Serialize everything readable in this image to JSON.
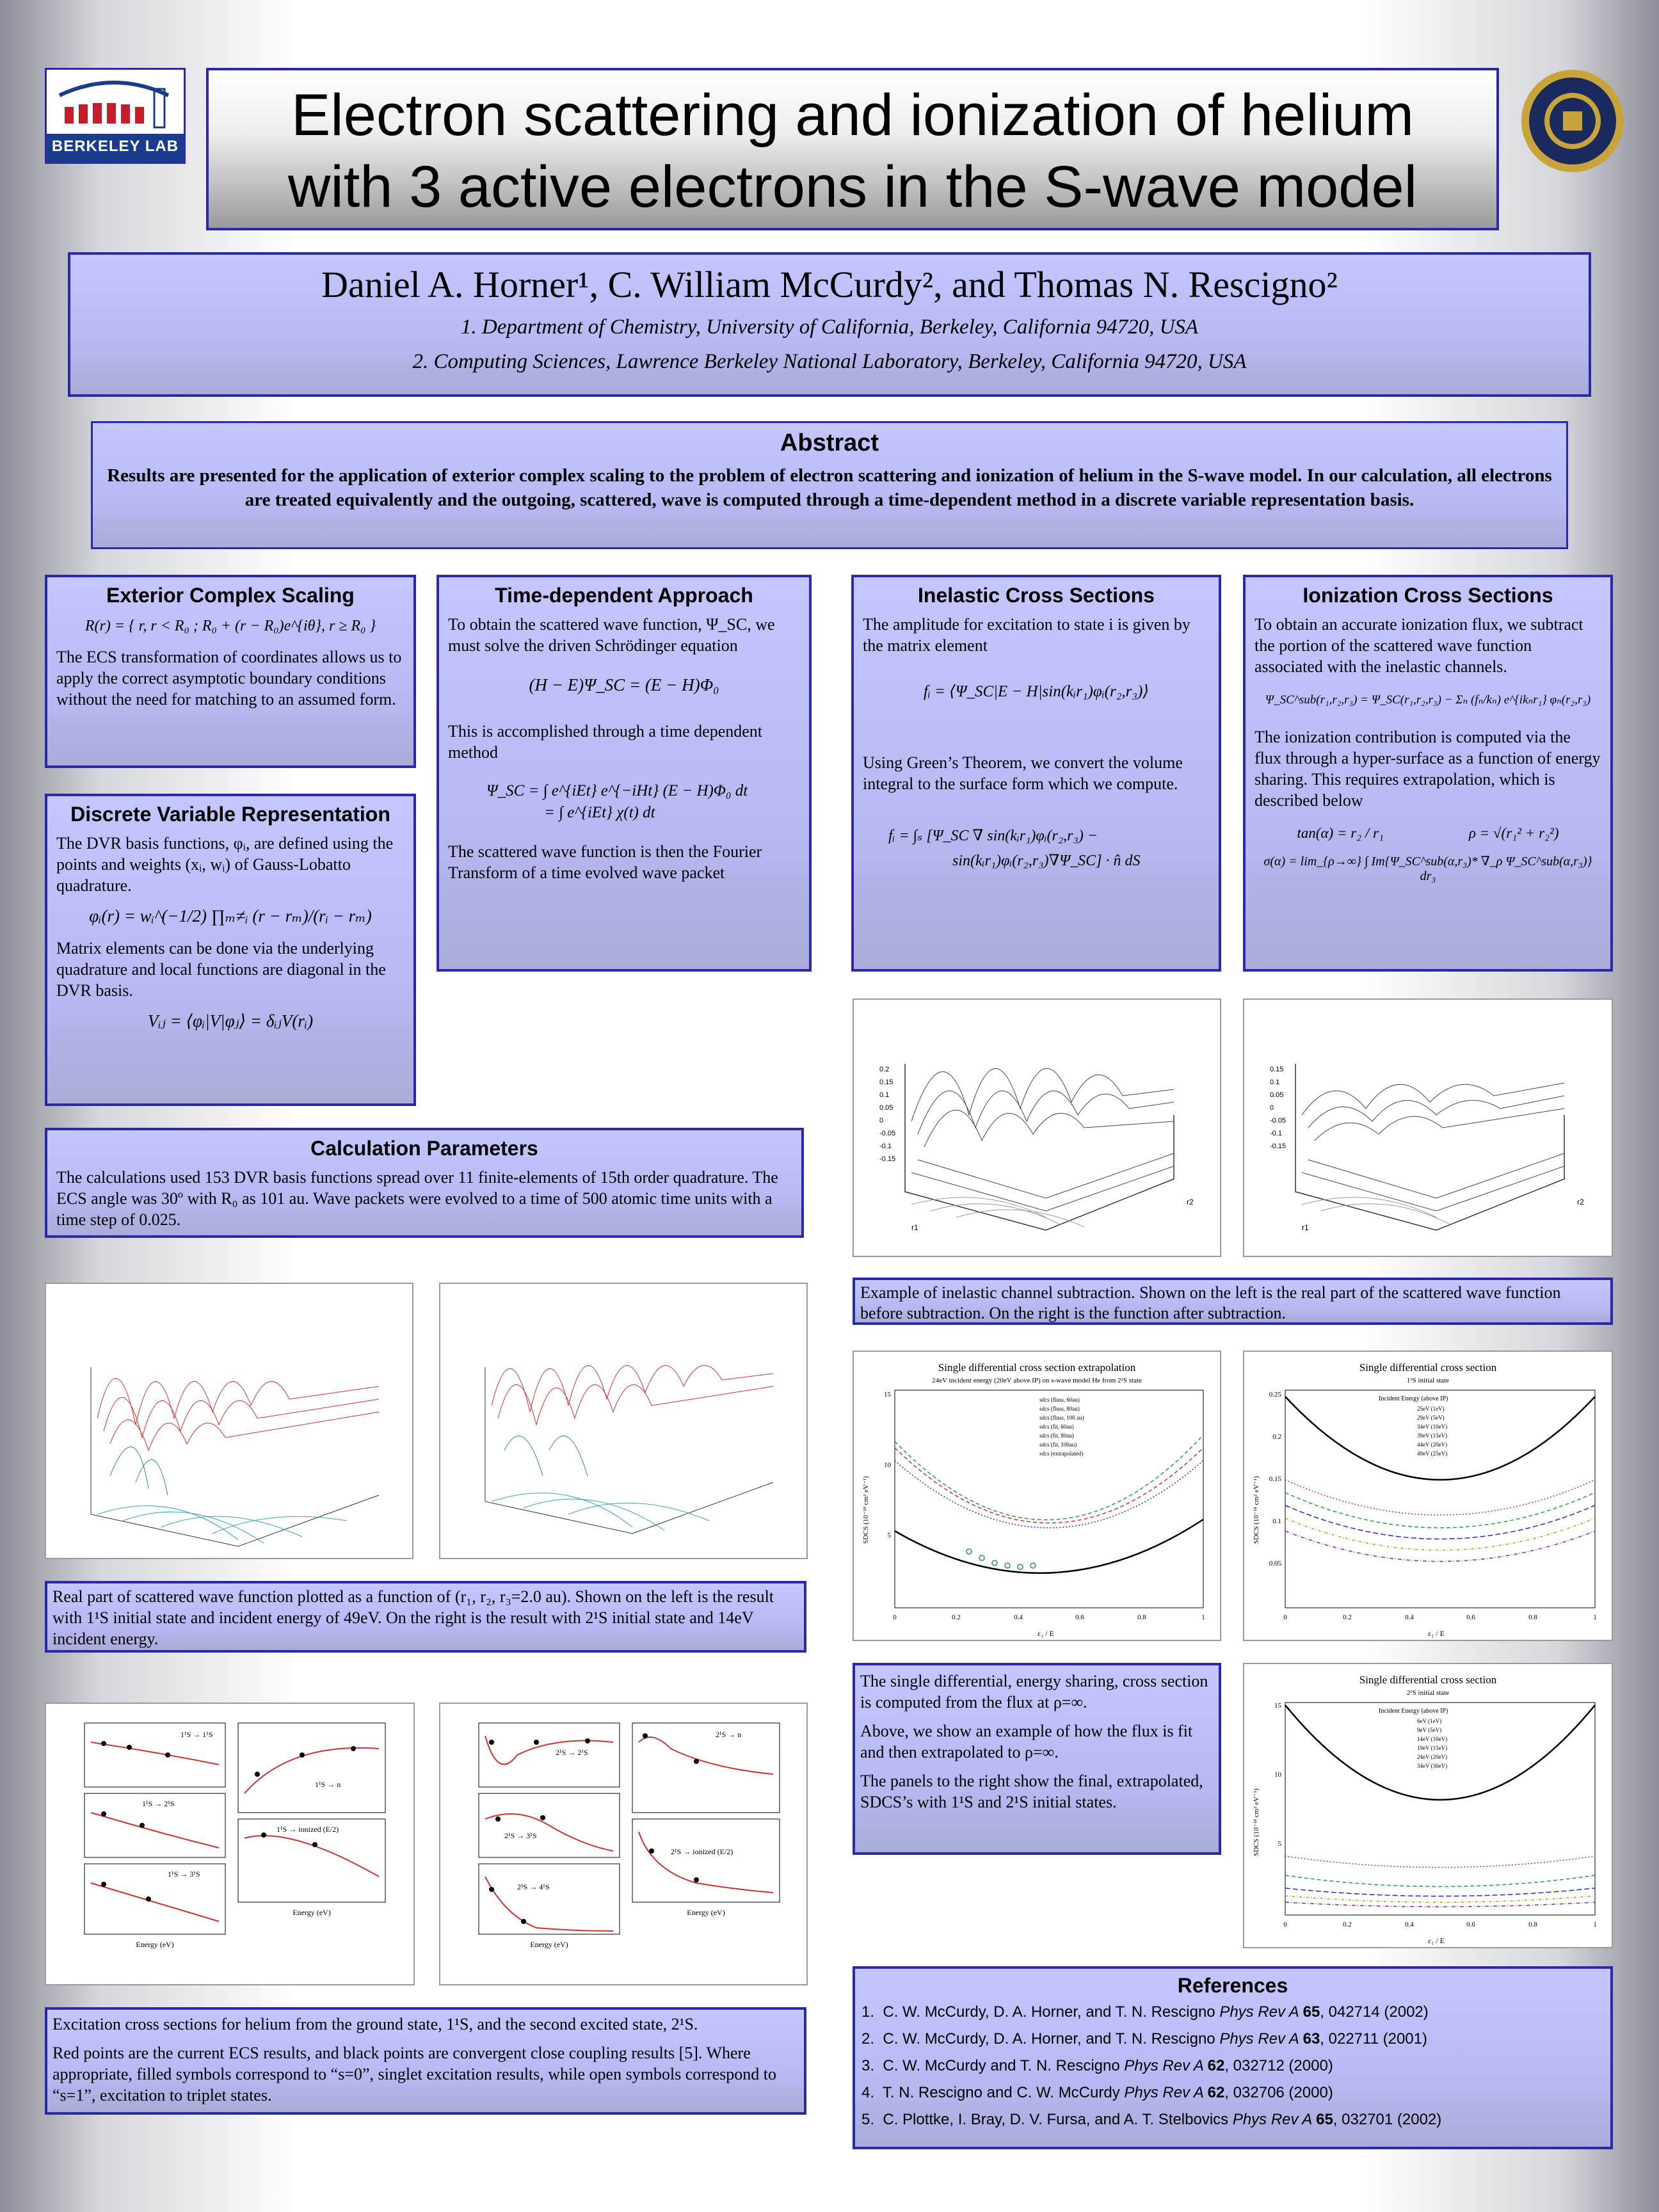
{
  "header": {
    "logo_left": "BERKELEY LAB",
    "title_line1": "Electron scattering and ionization of helium",
    "title_line2": "with 3 active electrons in the S-wave model",
    "seal_right": "UNIVERSITY OF CALIFORNIA 1868"
  },
  "authors": {
    "names": "Daniel A. Horner¹, C. William McCurdy², and Thomas N. Rescigno²",
    "affil1": "1. Department of Chemistry, University of California, Berkeley, California 94720, USA",
    "affil2": "2. Computing Sciences, Lawrence Berkeley National Laboratory, Berkeley, California 94720, USA"
  },
  "abstract": {
    "title": "Abstract",
    "text": "Results are presented for the application of exterior complex scaling to the problem of electron scattering and ionization of helium in the S-wave model. In our calculation, all electrons are treated equivalently and the outgoing, scattered, wave is computed through a time-dependent method in a discrete variable representation basis."
  },
  "ecs": {
    "title": "Exterior Complex Scaling",
    "eq": "R(r) = { r, r < R₀ ; R₀ + (r − R₀)e^{iθ}, r ≥ R₀ }",
    "text": "The ECS transformation of coordinates allows us to apply the correct asymptotic boundary conditions without the need for matching to an assumed form."
  },
  "dvr": {
    "title": "Discrete Variable Representation",
    "text1": "The DVR basis functions, φᵢ, are defined using the points and weights (xᵢ, wᵢ) of Gauss-Lobatto quadrature.",
    "eq1": "φᵢ(r) = wᵢ^(−1/2) ∏ₘ≠ᵢ (r − rₘ)/(rᵢ − rₘ)",
    "text2": "Matrix elements can be done via the underlying quadrature and local functions are diagonal in the DVR basis.",
    "eq2": "Vᵢⱼ = ⟨φᵢ|V|φⱼ⟩ = δᵢⱼV(rᵢ)"
  },
  "td": {
    "title": "Time-dependent Approach",
    "text1": "To obtain the scattered wave function, Ψ_SC, we must solve the driven Schrödinger equation",
    "eq1": "(H − E)Ψ_SC = (E − H)Φ₀",
    "text2": "This is accomplished through a time dependent method",
    "eq2a": "Ψ_SC  =  ∫ e^{iEt} e^{−iHt} (E − H)Φ₀ dt",
    "eq2b": "=  ∫ e^{iEt} χ(t) dt",
    "text3": "The scattered wave function is then the Fourier Transform of a time evolved wave packet"
  },
  "inelastic": {
    "title": "Inelastic Cross Sections",
    "text1": "The amplitude for excitation to state i is given by the matrix element",
    "eq1": "fᵢ = ⟨Ψ_SC|E − H|sin(kᵢr₁)φᵢ(r₂,r₃)⟩",
    "text2": "Using Green’s Theorem, we convert the volume integral to the surface form which we compute.",
    "eq2a": "fᵢ  =  ∫ₛ [Ψ_SC ∇ sin(kᵢr₁)φᵢ(r₂,r₃) −",
    "eq2b": "sin(kᵢr₁)φᵢ(r₂,r₃)∇Ψ_SC] · n̂ dS"
  },
  "ionization": {
    "title": "Ionization Cross Sections",
    "text1": "To obtain an accurate ionization flux, we subtract the portion of the scattered wave function associated with the inelastic channels.",
    "eq1": "Ψ_SC^sub(r₁,r₂,r₃) = Ψ_SC(r₁,r₂,r₃) − Σₙ (fₙ/kₙ) e^{ikₙr₁} φₙ(r₂,r₃)",
    "text2": "The ionization contribution is computed via the flux through a hyper-surface as a function of energy sharing. This requires extrapolation, which is described below",
    "eq2a": "tan(α) = r₂ / r₁",
    "eq2b": "ρ = √(r₁² + r₂²)",
    "eq3": "σ(α) = lim_{ρ→∞} ∫ Im{Ψ_SC^sub(α,r₃)* ∇_ρ Ψ_SC^sub(α,r₃)} dr₃"
  },
  "params": {
    "title": "Calculation Parameters",
    "text": "The calculations used 153 DVR basis functions spread over 11 finite-elements of 15th order quadrature. The ECS angle was 30º with R₀ as 101 au. Wave packets were evolved to a time of 500 atomic time units with a time step of 0.025."
  },
  "captions": {
    "subtraction": "Example of inelastic channel subtraction. Shown on the left is the real part of the scattered wave function before subtraction. On the right is the function after subtraction.",
    "realpart": "Real part of scattered wave function plotted as a function of (r₁, r₂, r₃=2.0 au). Shown on the left is the result with 1¹S initial state and incident energy of 49eV. On the right is the result with 2¹S initial state and 14eV incident energy.",
    "excitation1": "Excitation cross sections for helium from the ground state, 1¹S, and the second excited state, 2¹S.",
    "excitation2": "Red points are the current ECS results, and black points are convergent close coupling results [5]. Where appropriate, filled symbols correspond to “s=0”, singlet excitation results, while open symbols correspond to “s=1”, excitation to triplet states.",
    "sdcs1": "The single differential, energy sharing, cross section is computed from the flux at ρ=∞.",
    "sdcs2": "Above, we show an example of how the flux is fit and then extrapolated to ρ=∞.",
    "sdcs3": "The panels to the right show the final, extrapolated, SDCS’s with 1¹S and 2¹S initial states."
  },
  "plots": {
    "surface_left": {
      "zticks": [
        "0.2",
        "0.15",
        "0.1",
        "0.05",
        "0",
        "-0.05",
        "-0.1",
        "-0.15"
      ],
      "xlabel": "r1",
      "ylabel": "r2"
    },
    "surface_right": {
      "zticks": [
        "0.15",
        "0.1",
        "0.05",
        "0",
        "-0.05",
        "-0.1",
        "-0.15"
      ],
      "xlabel": "r1",
      "ylabel": "r2"
    },
    "sdcs_extrap": {
      "title": "Single differential cross section extrapolation",
      "subtitle": "24eV incident energy (20eV above IP) on s-wave model He from 2¹S state",
      "ylabel": "SDCS (10⁻¹⁸ cm² eV⁻¹)",
      "xlabel": "ε₁ / E",
      "legend": [
        "sdcs (fluss, 60au)",
        "sdcs (fluss, 80au)",
        "sdcs (fluss, 100 au)",
        "sdcs (fit, 60au)",
        "sdcs (fit, 80au)",
        "sdcs (fit, 100au)",
        "sdcs (extrapolated)"
      ],
      "xticks": [
        "0",
        "0.2",
        "0.4",
        "0.6",
        "0.8",
        "1"
      ],
      "yticks": [
        "5",
        "10",
        "15"
      ]
    },
    "sdcs_1s": {
      "title": "Single differential cross section",
      "subtitle": "1¹S initial state",
      "legend_title": "Incident Energy (above IP)",
      "legend": [
        "25eV (1eV)",
        "29eV (5eV)",
        "34eV (10eV)",
        "39eV (15eV)",
        "44eV (20eV)",
        "49eV (25eV)"
      ],
      "ylabel": "SDCS (10⁻¹⁸ cm² eV⁻¹)",
      "xlabel": "ε₁ / E",
      "xticks": [
        "0",
        "0.2",
        "0.4",
        "0.6",
        "0.8",
        "1"
      ],
      "yticks": [
        "0.05",
        "0.1",
        "0.15",
        "0.2",
        "0.25"
      ]
    },
    "sdcs_2s": {
      "title": "Single differential cross section",
      "subtitle": "2¹S initial state",
      "legend_title": "Incident Energy (above IP)",
      "legend": [
        "6eV (1eV)",
        "9eV (5eV)",
        "14eV (10eV)",
        "19eV (15eV)",
        "24eV (20eV)",
        "34eV (30eV)"
      ],
      "ylabel": "SDCS (10⁻¹⁸ cm² eV⁻¹)",
      "xlabel": "ε₁ / E",
      "xticks": [
        "0",
        "0.2",
        "0.4",
        "0.6",
        "0.8",
        "1"
      ],
      "yticks": [
        "5",
        "10",
        "15"
      ]
    },
    "excitation_left": {
      "labels": [
        "1¹S → 1¹S",
        "1¹S → 2¹S",
        "1¹S → 3¹S",
        "1¹S → n",
        "1¹S → ionized (E/2)"
      ],
      "xlabel": "Energy (eV)"
    },
    "excitation_right": {
      "labels": [
        "2¹S → 2¹S",
        "2¹S → 3¹S",
        "2¹S → 4¹S",
        "2¹S → n",
        "2¹S → ionized (E/2)"
      ],
      "xlabel": "Energy (eV)"
    }
  },
  "references": {
    "title": "References",
    "items": [
      {
        "num": "1.",
        "authors": "C. W. McCurdy, D. A. Horner, and T. N. Rescigno ",
        "journal": "Phys Rev A ",
        "vol": "65",
        "rest": ", 042714 (2002)"
      },
      {
        "num": "2.",
        "authors": "C. W. McCurdy, D. A. Horner, and T. N. Rescigno ",
        "journal": "Phys Rev A ",
        "vol": "63",
        "rest": ", 022711 (2001)"
      },
      {
        "num": "3.",
        "authors": "C. W. McCurdy and T. N. Rescigno ",
        "journal": "Phys Rev A ",
        "vol": "62",
        "rest": ", 032712 (2000)"
      },
      {
        "num": "4.",
        "authors": "T. N. Rescigno and C. W. McCurdy ",
        "journal": "Phys Rev A ",
        "vol": "62",
        "rest": ", 032706 (2000)"
      },
      {
        "num": "5.",
        "authors": "C. Plottke, I. Bray, D. V. Fursa, and A. T. Stelbovics  ",
        "journal": "Phys Rev A ",
        "vol": "65",
        "rest": ", 032701 (2002)"
      }
    ]
  },
  "colors": {
    "panel_border": "#2a2aa8",
    "panel_fill": "#c4c6ff",
    "red": "#cc2222"
  }
}
